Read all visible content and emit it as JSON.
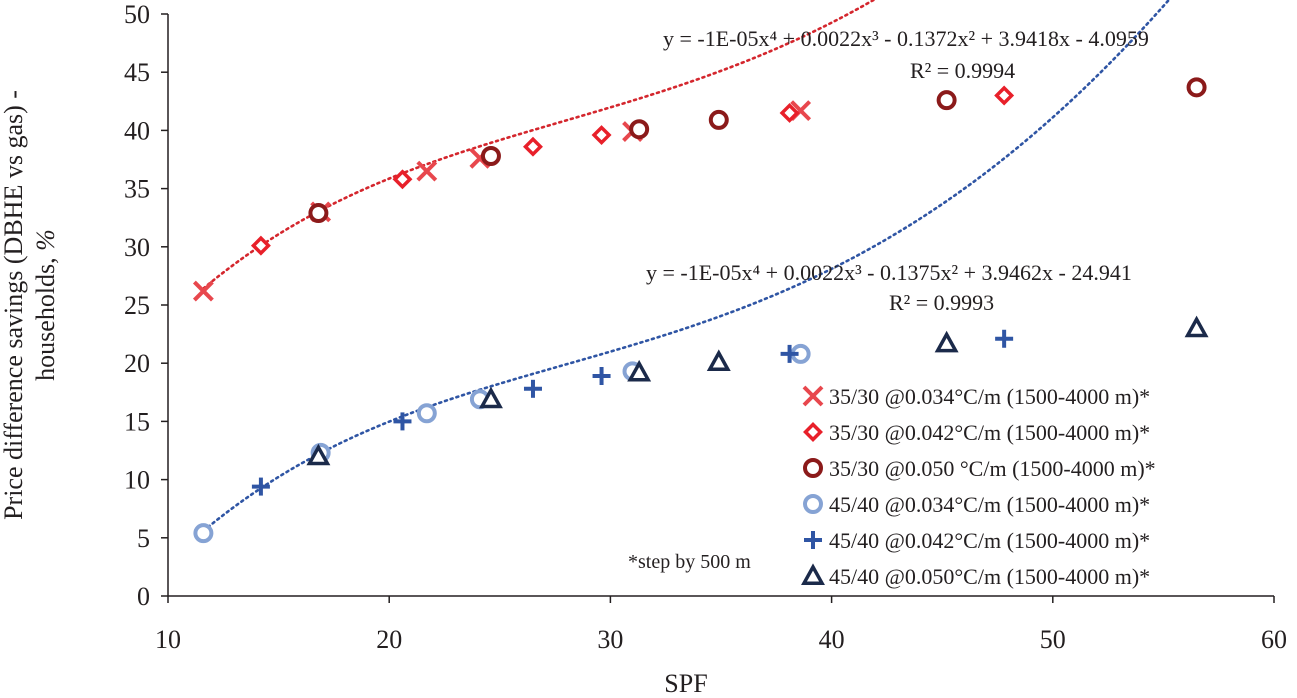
{
  "chart_data": {
    "type": "scatter",
    "title": "",
    "xlabel": "SPF",
    "ylabel_line1": "Price difference savings (DBHE vs gas) -",
    "ylabel_line2_text": "households, ",
    "ylabel_line2_unit": "%",
    "xlim": [
      10,
      60
    ],
    "ylim": [
      0,
      50
    ],
    "x_ticks": [
      "10",
      "20",
      "30",
      "40",
      "50",
      "60"
    ],
    "y_ticks": [
      "0",
      "5",
      "10",
      "15",
      "20",
      "25",
      "30",
      "35",
      "40",
      "45",
      "50"
    ],
    "grid": false,
    "legend_position": "bottom-right",
    "note": "*step by 500 m",
    "series": [
      {
        "name": "35/30 @0.034°C/m (1500-4000 m)*",
        "marker": "x",
        "color": "#e8474d",
        "x": [
          11.6,
          16.9,
          21.7,
          24.1,
          31.0,
          38.6
        ],
        "y": [
          26.2,
          33.0,
          36.5,
          37.6,
          39.9,
          41.7
        ]
      },
      {
        "name": "35/30 @0.042°C/m (1500-4000 m)*",
        "marker": "diamond",
        "color": "#e8202a",
        "x": [
          14.2,
          20.6,
          26.5,
          29.6,
          38.1,
          47.8
        ],
        "y": [
          30.1,
          35.8,
          38.6,
          39.6,
          41.5,
          43.0
        ]
      },
      {
        "name": "35/30 @0.050 °C/m (1500-4000 m)*",
        "marker": "circle",
        "color": "#8b1a1a",
        "x": [
          16.8,
          24.6,
          31.3,
          34.9,
          45.2,
          56.5
        ],
        "y": [
          32.9,
          37.8,
          40.1,
          40.9,
          42.6,
          43.7
        ]
      },
      {
        "name": "45/40 @0.034°C/m (1500-4000 m)*",
        "marker": "circle",
        "color": "#86a3d4",
        "x": [
          11.6,
          16.9,
          21.7,
          24.1,
          31.0,
          38.6
        ],
        "y": [
          5.4,
          12.3,
          15.7,
          16.9,
          19.3,
          20.8
        ]
      },
      {
        "name": "45/40 @0.042°C/m (1500-4000 m)*",
        "marker": "plus",
        "color": "#2f55a4",
        "x": [
          14.2,
          20.6,
          26.5,
          29.6,
          38.1,
          47.8
        ],
        "y": [
          9.4,
          15.0,
          17.8,
          18.9,
          20.8,
          22.1
        ]
      },
      {
        "name": "45/40 @0.050°C/m (1500-4000 m)*",
        "marker": "triangle",
        "color": "#1b2a4a",
        "x": [
          16.8,
          24.6,
          31.3,
          34.9,
          45.2,
          56.5
        ],
        "y": [
          12.0,
          16.9,
          19.2,
          20.1,
          21.7,
          23.0
        ]
      }
    ],
    "trendlines": [
      {
        "color": "#d4262d",
        "coeffs": [
          -1e-05,
          0.0022,
          -0.1372,
          3.9418,
          -4.0959
        ],
        "equation": "y = -1E-05x⁴ + 0.0022x³ - 0.1372x² + 3.9418x - 4.0959",
        "r2": "R² = 0.9994"
      },
      {
        "color": "#2f55a4",
        "coeffs": [
          -1e-05,
          0.0022,
          -0.1375,
          3.9462,
          -24.941
        ],
        "equation": "y = -1E-05x⁴ + 0.0022x³ - 0.1375x² + 3.9462x - 24.941",
        "r2": "R² = 0.9993"
      }
    ],
    "trend_range": [
      11.6,
      56.5
    ]
  }
}
